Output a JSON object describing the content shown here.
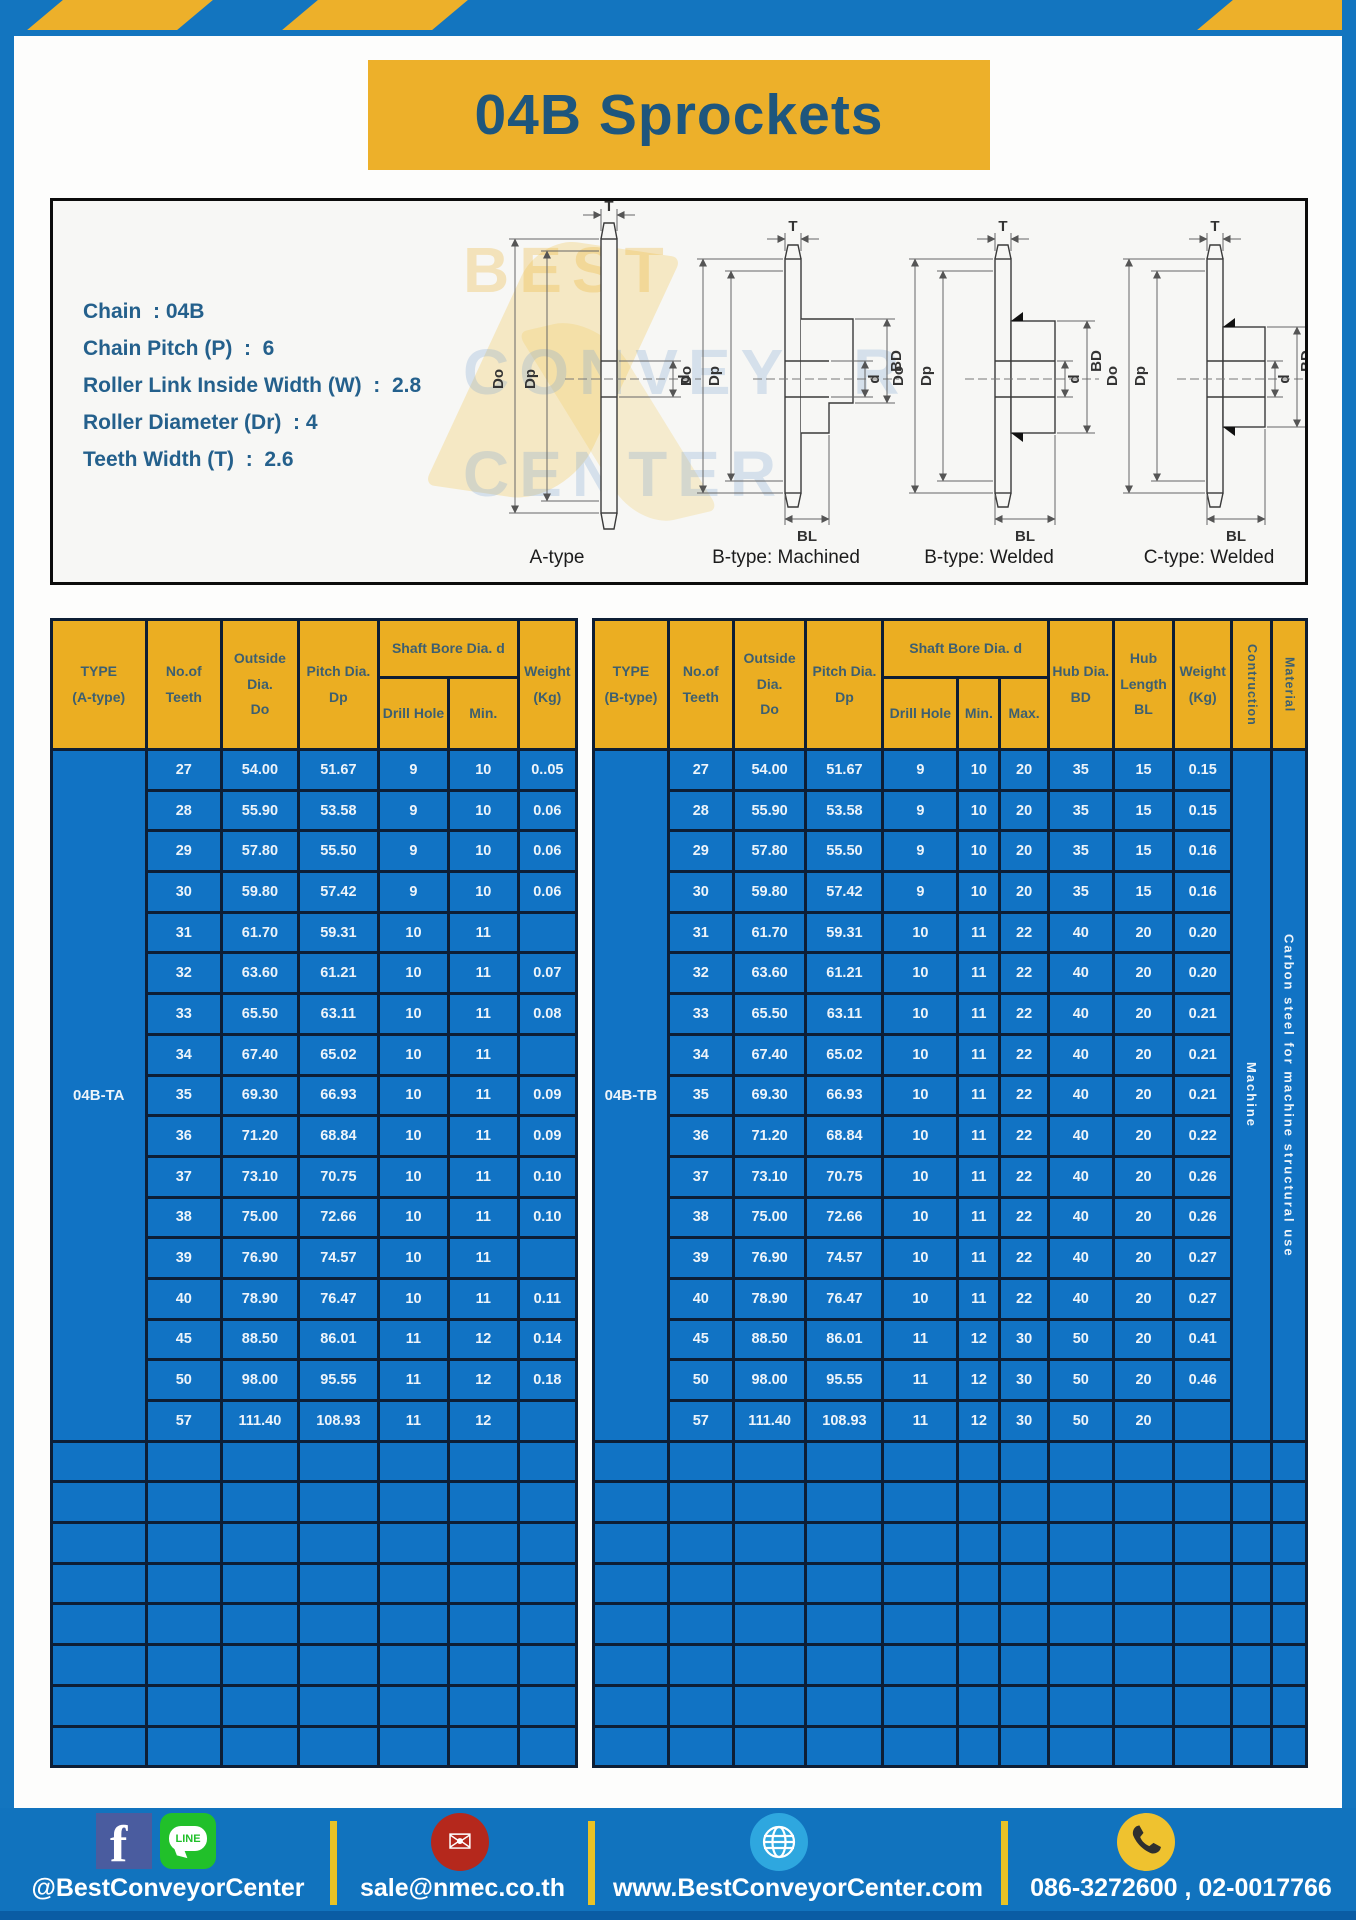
{
  "frame": {
    "brand_blue": "#1375BF",
    "accent_yellow": "#EDB02A",
    "cell_blue": "#1173C4",
    "header_yellow": "#EBAE22"
  },
  "title": "04B Sprockets",
  "specs": {
    "lines": [
      "Chain  : 04B",
      "Chain Pitch (P)  :  6",
      "Roller Link Inside Width (W)  :  2.8",
      "Roller Diameter (Dr)  : 4",
      "Teeth Width (T)  :  2.6"
    ]
  },
  "diagram": {
    "captions": [
      "A-type",
      "B-type: Machined",
      "B-type: Welded",
      "C-type: Welded"
    ],
    "dims": {
      "t": "T",
      "outside": "Do",
      "pitch": "Dp",
      "bore": "d",
      "hub": "BD",
      "hub_len": "BL"
    },
    "watermark": [
      "BEST",
      "CONVEYOR",
      "CENTER"
    ]
  },
  "left_table": {
    "header": {
      "type": "TYPE\n(A-type)",
      "teeth": "No.of\nTeeth",
      "outside": "Outside\nDia.\nDo",
      "pitch": "Pitch Dia.\nDp",
      "shaft": "Shaft Bore Dia. d",
      "drill": "Drill Hole",
      "min": "Min.",
      "weight": "Weight\n(Kg)"
    },
    "type_label": "04B-TA",
    "total_cols": 7,
    "empty_rows": 8,
    "rows": [
      [
        "27",
        "54.00",
        "51.67",
        "9",
        "10",
        "0..05"
      ],
      [
        "28",
        "55.90",
        "53.58",
        "9",
        "10",
        "0.06"
      ],
      [
        "29",
        "57.80",
        "55.50",
        "9",
        "10",
        "0.06"
      ],
      [
        "30",
        "59.80",
        "57.42",
        "9",
        "10",
        "0.06"
      ],
      [
        "31",
        "61.70",
        "59.31",
        "10",
        "11",
        ""
      ],
      [
        "32",
        "63.60",
        "61.21",
        "10",
        "11",
        "0.07"
      ],
      [
        "33",
        "65.50",
        "63.11",
        "10",
        "11",
        "0.08"
      ],
      [
        "34",
        "67.40",
        "65.02",
        "10",
        "11",
        ""
      ],
      [
        "35",
        "69.30",
        "66.93",
        "10",
        "11",
        "0.09"
      ],
      [
        "36",
        "71.20",
        "68.84",
        "10",
        "11",
        "0.09"
      ],
      [
        "37",
        "73.10",
        "70.75",
        "10",
        "11",
        "0.10"
      ],
      [
        "38",
        "75.00",
        "72.66",
        "10",
        "11",
        "0.10"
      ],
      [
        "39",
        "76.90",
        "74.57",
        "10",
        "11",
        ""
      ],
      [
        "40",
        "78.90",
        "76.47",
        "10",
        "11",
        "0.11"
      ],
      [
        "45",
        "88.50",
        "86.01",
        "11",
        "12",
        "0.14"
      ],
      [
        "50",
        "98.00",
        "95.55",
        "11",
        "12",
        "0.18"
      ],
      [
        "57",
        "111.40",
        "108.93",
        "11",
        "12",
        ""
      ]
    ]
  },
  "right_table": {
    "header": {
      "type": "TYPE\n(B-type)",
      "teeth": "No.of\nTeeth",
      "outside": "Outside\nDia.\nDo",
      "pitch": "Pitch Dia.\nDp",
      "shaft": "Shaft Bore Dia. d",
      "drill": "Drill Hole",
      "min": "Min.",
      "max": "Max.",
      "hub_dia": "Hub Dia.\nBD",
      "hub_len": "Hub\nLength\nBL",
      "weight": "Weight\n(Kg)",
      "construction": "Contruction",
      "material": "Material"
    },
    "type_label": "04B-TB",
    "construction": "Machine",
    "material": "Carbon steel for machine structural use",
    "total_cols": 12,
    "empty_rows": 8,
    "rows": [
      [
        "27",
        "54.00",
        "51.67",
        "9",
        "10",
        "20",
        "35",
        "15",
        "0.15"
      ],
      [
        "28",
        "55.90",
        "53.58",
        "9",
        "10",
        "20",
        "35",
        "15",
        "0.15"
      ],
      [
        "29",
        "57.80",
        "55.50",
        "9",
        "10",
        "20",
        "35",
        "15",
        "0.16"
      ],
      [
        "30",
        "59.80",
        "57.42",
        "9",
        "10",
        "20",
        "35",
        "15",
        "0.16"
      ],
      [
        "31",
        "61.70",
        "59.31",
        "10",
        "11",
        "22",
        "40",
        "20",
        "0.20"
      ],
      [
        "32",
        "63.60",
        "61.21",
        "10",
        "11",
        "22",
        "40",
        "20",
        "0.20"
      ],
      [
        "33",
        "65.50",
        "63.11",
        "10",
        "11",
        "22",
        "40",
        "20",
        "0.21"
      ],
      [
        "34",
        "67.40",
        "65.02",
        "10",
        "11",
        "22",
        "40",
        "20",
        "0.21"
      ],
      [
        "35",
        "69.30",
        "66.93",
        "10",
        "11",
        "22",
        "40",
        "20",
        "0.21"
      ],
      [
        "36",
        "71.20",
        "68.84",
        "10",
        "11",
        "22",
        "40",
        "20",
        "0.22"
      ],
      [
        "37",
        "73.10",
        "70.75",
        "10",
        "11",
        "22",
        "40",
        "20",
        "0.26"
      ],
      [
        "38",
        "75.00",
        "72.66",
        "10",
        "11",
        "22",
        "40",
        "20",
        "0.26"
      ],
      [
        "39",
        "76.90",
        "74.57",
        "10",
        "11",
        "22",
        "40",
        "20",
        "0.27"
      ],
      [
        "40",
        "78.90",
        "76.47",
        "10",
        "11",
        "22",
        "40",
        "20",
        "0.27"
      ],
      [
        "45",
        "88.50",
        "86.01",
        "11",
        "12",
        "30",
        "50",
        "20",
        "0.41"
      ],
      [
        "50",
        "98.00",
        "95.55",
        "11",
        "12",
        "30",
        "50",
        "20",
        "0.46"
      ],
      [
        "57",
        "111.40",
        "108.93",
        "11",
        "12",
        "30",
        "50",
        "20",
        ""
      ]
    ]
  },
  "footer": {
    "social": "@BestConveyorCenter",
    "email": "sale@nmec.co.th",
    "website": "www.BestConveyorCenter.com",
    "phone": "086-3272600 , 02-0017766",
    "line_label": "LINE",
    "fb_label": "f",
    "mail_glyph": "✉"
  }
}
